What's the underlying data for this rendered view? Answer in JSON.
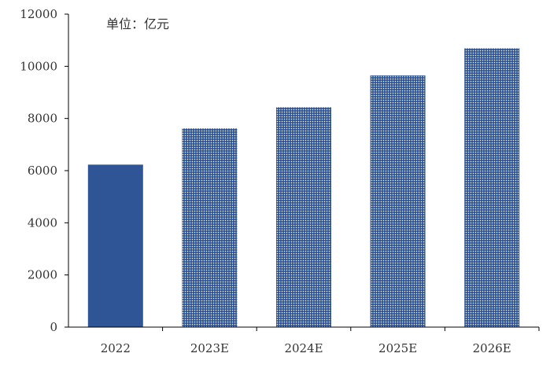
{
  "chart_data": {
    "type": "bar",
    "unit_label": "单位：亿元",
    "categories": [
      "2022",
      "2023E",
      "2024E",
      "2025E",
      "2026E"
    ],
    "values": [
      6230,
      7620,
      8430,
      9650,
      10690
    ],
    "ylim": [
      0,
      12000
    ],
    "yticks": [
      0,
      2000,
      4000,
      6000,
      8000,
      10000,
      12000
    ],
    "grid": false,
    "legend": "none",
    "bar_styles": [
      "solid",
      "dotted",
      "dotted",
      "dotted",
      "dotted"
    ],
    "colors": {
      "bar": "#2f5597",
      "dot": "#ffffff",
      "axis": "#000000",
      "text": "#333333"
    }
  }
}
